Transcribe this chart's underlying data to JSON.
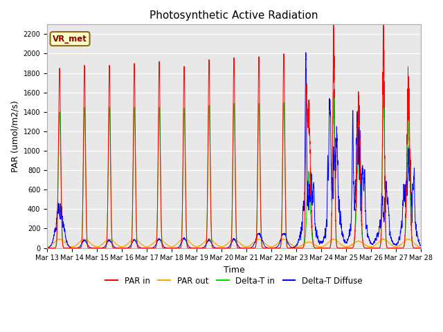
{
  "title": "Photosynthetic Active Radiation",
  "ylabel": "PAR (umol/m2/s)",
  "xlabel": "Time",
  "annotation": "VR_met",
  "ylim": [
    0,
    2300
  ],
  "yticks": [
    0,
    200,
    400,
    600,
    800,
    1000,
    1200,
    1400,
    1600,
    1800,
    2000,
    2200
  ],
  "xtick_labels": [
    "Mar 13",
    "Mar 14",
    "Mar 15",
    "Mar 16",
    "Mar 17",
    "Mar 18",
    "Mar 19",
    "Mar 20",
    "Mar 21",
    "Mar 22",
    "Mar 23",
    "Mar 24",
    "Mar 25",
    "Mar 26",
    "Mar 27",
    "Mar 28"
  ],
  "colors": {
    "PAR_in": "#ff0000",
    "PAR_out": "#ffa500",
    "Delta_T_in": "#00dd00",
    "Delta_T_Diffuse": "#0000ff"
  },
  "legend_labels": [
    "PAR in",
    "PAR out",
    "Delta-T in",
    "Delta-T Diffuse"
  ],
  "background_color": "#e8e8e8",
  "axes_background": "#e8e8e8",
  "title_fontsize": 11,
  "tick_fontsize": 7,
  "ylabel_fontsize": 9,
  "xlabel_fontsize": 9
}
